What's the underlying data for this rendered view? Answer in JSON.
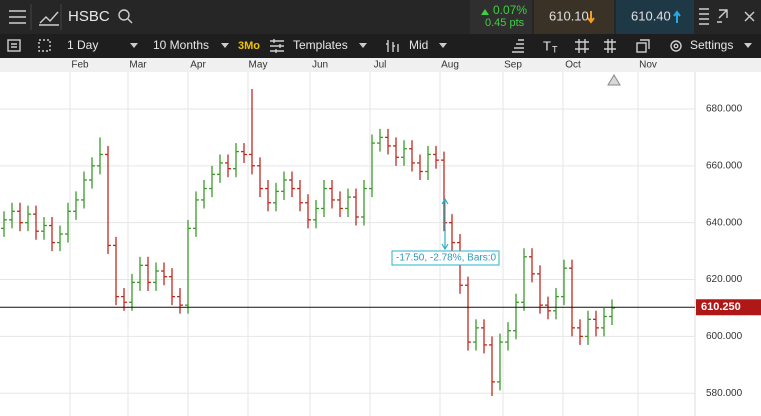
{
  "toolbar": {
    "symbol": "HSBC",
    "change_percent": "0.07%",
    "change_points": "0.45 pts",
    "sell_price": "610.10",
    "buy_price": "610.40",
    "interval": "1 Day",
    "range": "10 Months",
    "range_short": "3Mo",
    "templates": "Templates",
    "price_type": "Mid",
    "settings": "Settings"
  },
  "chart_data": {
    "type": "ohlc",
    "x_axis_labels": [
      "Feb",
      "Mar",
      "Apr",
      "May",
      "Jun",
      "Jul",
      "Aug",
      "Sep",
      "Oct",
      "Nov"
    ],
    "open": [
      638,
      641,
      644,
      640,
      643,
      637,
      639,
      633,
      636,
      644,
      648,
      655,
      660,
      664,
      632,
      614,
      612,
      619,
      625,
      619,
      623,
      621,
      614,
      611,
      638,
      648,
      652,
      657,
      661,
      659,
      665,
      664,
      660,
      652,
      647,
      651,
      655,
      652,
      647,
      641,
      645,
      652,
      648,
      645,
      649,
      642,
      652,
      668,
      670,
      667,
      663,
      666,
      661,
      658,
      664,
      662,
      640,
      633,
      618,
      598,
      603,
      597,
      584,
      598,
      602,
      612,
      628,
      622,
      611,
      609,
      614,
      624,
      603,
      600,
      606,
      603,
      607
    ],
    "high": [
      644,
      647,
      647,
      646,
      646,
      642,
      642,
      639,
      647,
      651,
      658,
      663,
      670,
      667,
      635,
      617,
      622,
      628,
      628,
      626,
      626,
      624,
      617,
      641,
      651,
      655,
      660,
      664,
      664,
      668,
      668,
      687,
      663,
      655,
      654,
      658,
      658,
      655,
      650,
      648,
      655,
      655,
      651,
      652,
      652,
      655,
      671,
      673,
      673,
      670,
      669,
      669,
      664,
      667,
      667,
      665,
      643,
      636,
      621,
      606,
      606,
      600,
      601,
      605,
      615,
      631,
      631,
      625,
      614,
      617,
      627,
      627,
      606,
      609,
      609,
      610,
      613
    ],
    "low": [
      635,
      638,
      637,
      637,
      634,
      634,
      630,
      630,
      633,
      641,
      645,
      652,
      657,
      629,
      611,
      609,
      609,
      616,
      616,
      616,
      618,
      611,
      608,
      608,
      635,
      645,
      649,
      654,
      656,
      656,
      661,
      657,
      649,
      644,
      644,
      648,
      649,
      644,
      638,
      638,
      642,
      645,
      642,
      642,
      639,
      639,
      649,
      665,
      664,
      660,
      660,
      658,
      655,
      655,
      659,
      637,
      630,
      615,
      595,
      595,
      594,
      579,
      581,
      595,
      599,
      609,
      619,
      608,
      606,
      606,
      611,
      600,
      597,
      597,
      600,
      600,
      604
    ],
    "close": [
      641,
      644,
      640,
      643,
      637,
      639,
      633,
      636,
      644,
      648,
      655,
      660,
      664,
      632,
      614,
      612,
      619,
      625,
      619,
      623,
      621,
      614,
      611,
      638,
      648,
      652,
      657,
      661,
      659,
      665,
      664,
      660,
      652,
      647,
      651,
      655,
      652,
      647,
      641,
      645,
      652,
      648,
      645,
      649,
      642,
      652,
      668,
      670,
      667,
      663,
      666,
      661,
      658,
      664,
      662,
      640,
      633,
      618,
      598,
      603,
      597,
      584,
      598,
      602,
      612,
      628,
      622,
      611,
      609,
      614,
      624,
      603,
      600,
      606,
      603,
      607,
      610
    ],
    "up_color": "#3a9a2a",
    "down_color": "#c0281e",
    "ylim": [
      572,
      693
    ],
    "yticks": [
      {
        "value": 580,
        "label": "580.000"
      },
      {
        "value": 600,
        "label": "600.000"
      },
      {
        "value": 620,
        "label": "620.000"
      },
      {
        "value": 640,
        "label": "640.000"
      },
      {
        "value": 660,
        "label": "660.000"
      },
      {
        "value": 680,
        "label": "680.000"
      }
    ],
    "grid": true,
    "last_price": {
      "value": 610.25,
      "label": "610.250"
    },
    "measurement_label": "-17.50, -2.78%, Bars:0"
  }
}
